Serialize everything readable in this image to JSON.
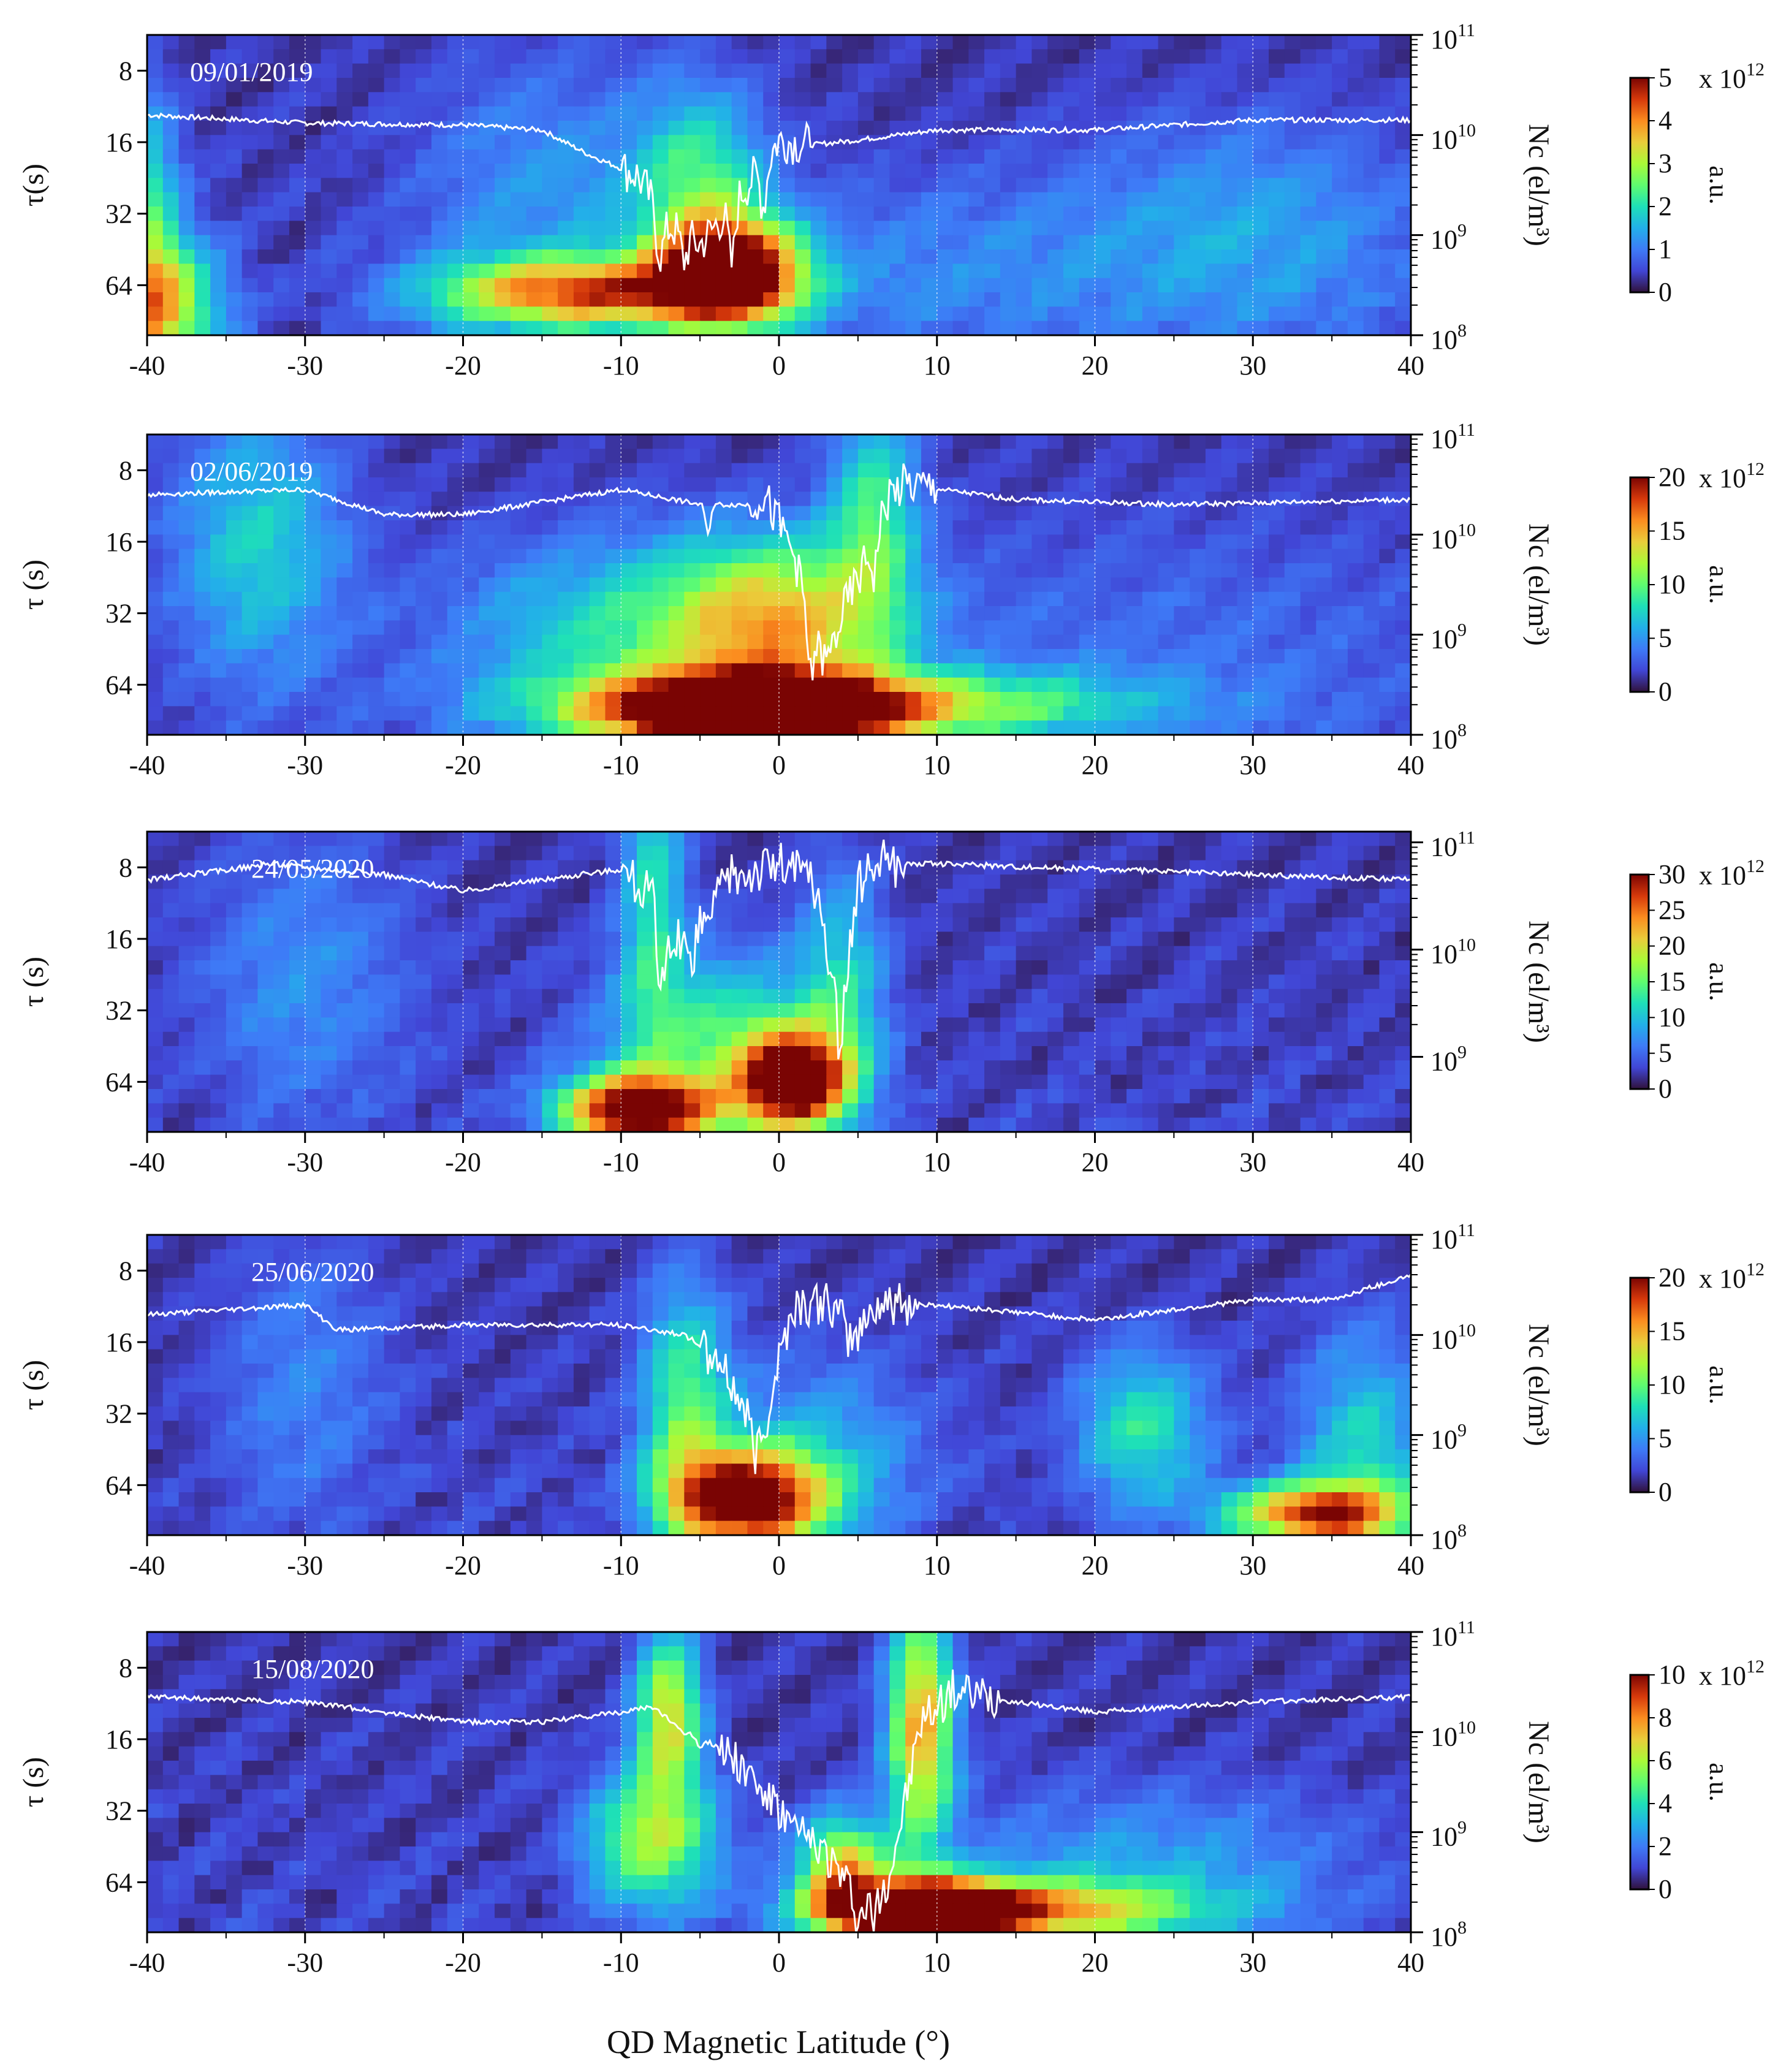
{
  "chart_data": [
    {
      "type": "heatmap",
      "date": "09/01/2019",
      "xlabel": "QD Magnetic Latitude (°)",
      "ylabel": "τ(s)",
      "y2label": "Nc (el/m³)",
      "colorbar_label": "a.u.",
      "colorbar_scale": "x 10^12",
      "colorbar_ticks": [
        "0",
        "1",
        "2",
        "3",
        "4",
        "5"
      ],
      "colorbar_max": 5,
      "x_ticks": [
        "-40",
        "-30",
        "-20",
        "-10",
        "0",
        "10",
        "20",
        "30",
        "40"
      ],
      "xlim": [
        -40,
        40
      ],
      "y_ticks": [
        "8",
        "16",
        "32",
        "64"
      ],
      "y2_ticks": [
        8,
        9,
        10,
        11
      ],
      "y2lim": [
        8,
        11
      ],
      "blobs": [
        {
          "x": -3,
          "y": 5.8,
          "sx": 3,
          "sy": 0.5,
          "v": 5.0
        },
        {
          "x": -12,
          "y": 6.1,
          "sx": 7,
          "sy": 0.35,
          "v": 3.6
        },
        {
          "x": -40,
          "y": 6.3,
          "sx": 3,
          "sy": 0.7,
          "v": 3.6
        },
        {
          "x": -40,
          "y": 4.6,
          "sx": 1.5,
          "sy": 1,
          "v": 1.6
        },
        {
          "x": -5,
          "y": 4.6,
          "sx": 3,
          "sy": 1,
          "v": 1.8
        },
        {
          "x": -15,
          "y": 4.8,
          "sx": 6,
          "sy": 1.5,
          "v": 0.9
        },
        {
          "x": 30,
          "y": 5.3,
          "sx": 8,
          "sy": 1.2,
          "v": 1.0
        },
        {
          "x": 10,
          "y": 5.8,
          "sx": 10,
          "sy": 1.0,
          "v": 0.7
        }
      ],
      "nc_baseline": [
        [
          -40,
          10.2
        ],
        [
          -30,
          10.12
        ],
        [
          -20,
          10.1
        ],
        [
          -15,
          10.05
        ],
        [
          -12,
          9.8
        ],
        [
          -9,
          9.6
        ],
        [
          -7,
          9.1
        ],
        [
          -5,
          8.9
        ],
        [
          -3,
          9.3
        ],
        [
          -1,
          9.7
        ],
        [
          0,
          9.95
        ],
        [
          2,
          9.9
        ],
        [
          5,
          9.95
        ],
        [
          10,
          10.05
        ],
        [
          20,
          10.05
        ],
        [
          30,
          10.15
        ],
        [
          40,
          10.15
        ]
      ],
      "nc_dips": [
        [
          -7.5,
          8.8,
          0.5
        ],
        [
          -6,
          8.75,
          0.4
        ],
        [
          -3,
          8.7,
          0.4
        ],
        [
          -1,
          9.3,
          0.4
        ]
      ]
    },
    {
      "type": "heatmap",
      "date": "02/06/2019",
      "xlabel": "QD Magnetic Latitude (°)",
      "ylabel": "τ (s)",
      "y2label": "Nc (el/m³)",
      "colorbar_label": "a.u.",
      "colorbar_scale": "x 10^12",
      "colorbar_ticks": [
        "0",
        "5",
        "10",
        "15",
        "20"
      ],
      "colorbar_max": 20,
      "x_ticks": [
        "-40",
        "-30",
        "-20",
        "-10",
        "0",
        "10",
        "20",
        "30",
        "40"
      ],
      "xlim": [
        -40,
        40
      ],
      "y_ticks": [
        "8",
        "16",
        "32",
        "64"
      ],
      "y2_ticks": [
        8,
        9,
        10,
        11
      ],
      "y2lim": [
        8,
        11
      ],
      "blobs": [
        {
          "x": -2,
          "y": 6.4,
          "sx": 6,
          "sy": 0.35,
          "v": 20
        },
        {
          "x": 4,
          "y": 6.3,
          "sx": 12,
          "sy": 0.35,
          "v": 11
        },
        {
          "x": 0,
          "y": 5.1,
          "sx": 5,
          "sy": 0.8,
          "v": 11
        },
        {
          "x": -10,
          "y": 5.3,
          "sx": 8,
          "sy": 1.0,
          "v": 6
        },
        {
          "x": -33,
          "y": 4.0,
          "sx": 4,
          "sy": 1.4,
          "v": 6
        },
        {
          "x": 6,
          "y": 3.5,
          "sx": 2,
          "sy": 1.2,
          "v": 7
        },
        {
          "x": 25,
          "y": 5.5,
          "sx": 15,
          "sy": 1.5,
          "v": 2
        }
      ],
      "nc_baseline": [
        [
          -40,
          10.4
        ],
        [
          -30,
          10.45
        ],
        [
          -25,
          10.2
        ],
        [
          -20,
          10.2
        ],
        [
          -10,
          10.45
        ],
        [
          -5,
          10.3
        ],
        [
          -2,
          10.3
        ],
        [
          -1,
          10.4
        ],
        [
          1,
          9.8
        ],
        [
          2,
          9.0
        ],
        [
          3,
          8.7
        ],
        [
          4,
          9.2
        ],
        [
          6,
          9.9
        ],
        [
          7,
          10.4
        ],
        [
          8,
          10.5
        ],
        [
          15,
          10.35
        ],
        [
          25,
          10.3
        ],
        [
          40,
          10.35
        ]
      ],
      "nc_dips": [
        [
          2,
          8.55,
          0.3
        ],
        [
          -4.5,
          10.0,
          0.3
        ],
        [
          6,
          9.6,
          0.3
        ]
      ]
    },
    {
      "type": "heatmap",
      "date": "24/05/2020",
      "xlabel": "QD Magnetic Latitude (°)",
      "ylabel": "τ (s)",
      "y2label": "Nc (el/m³)",
      "colorbar_label": "a.u.",
      "colorbar_scale": "x 10^12",
      "colorbar_ticks": [
        "0",
        "5",
        "10",
        "15",
        "20",
        "25",
        "30"
      ],
      "colorbar_max": 30,
      "x_ticks": [
        "-40",
        "-30",
        "-20",
        "-10",
        "0",
        "10",
        "20",
        "30",
        "40"
      ],
      "xlim": [
        -40,
        40
      ],
      "y_ticks": [
        "8",
        "16",
        "32",
        "64"
      ],
      "y2_ticks": [
        9,
        10,
        11
      ],
      "y2lim": [
        8.3,
        11.1
      ],
      "blobs": [
        {
          "x": -9,
          "y": 6.4,
          "sx": 3.5,
          "sy": 0.35,
          "v": 30
        },
        {
          "x": 1,
          "y": 6.0,
          "sx": 2.5,
          "sy": 0.5,
          "v": 30
        },
        {
          "x": -4,
          "y": 5.4,
          "sx": 5,
          "sy": 0.9,
          "v": 11
        },
        {
          "x": -8,
          "y": 3.2,
          "sx": 1.5,
          "sy": 1.5,
          "v": 10
        },
        {
          "x": -30,
          "y": 4.5,
          "sx": 5,
          "sy": 1.5,
          "v": 5
        },
        {
          "x": 4,
          "y": 4.5,
          "sx": 2,
          "sy": 1.2,
          "v": 8
        }
      ],
      "nc_baseline": [
        [
          -40,
          10.65
        ],
        [
          -32,
          10.8
        ],
        [
          -25,
          10.7
        ],
        [
          -20,
          10.55
        ],
        [
          -10,
          10.75
        ],
        [
          -8,
          10.5
        ],
        [
          -7,
          10.0
        ],
        [
          -5,
          10.2
        ],
        [
          -3,
          10.7
        ],
        [
          0,
          10.8
        ],
        [
          2,
          10.7
        ],
        [
          3,
          10.0
        ],
        [
          4,
          9.4
        ],
        [
          5,
          10.6
        ],
        [
          6,
          10.8
        ],
        [
          10,
          10.8
        ],
        [
          20,
          10.75
        ],
        [
          30,
          10.7
        ],
        [
          40,
          10.65
        ]
      ],
      "nc_dips": [
        [
          -7.5,
          9.5,
          0.4
        ],
        [
          -5.5,
          9.7,
          0.3
        ],
        [
          3.8,
          8.95,
          0.25
        ]
      ]
    },
    {
      "type": "heatmap",
      "date": "25/06/2020",
      "xlabel": "QD Magnetic Latitude (°)",
      "ylabel": "τ (s)",
      "y2label": "Nc (el/m³)",
      "colorbar_label": "a.u.",
      "colorbar_scale": "x 10^12",
      "colorbar_ticks": [
        "0",
        "5",
        "10",
        "15",
        "20"
      ],
      "colorbar_max": 20,
      "x_ticks": [
        "-40",
        "-30",
        "-20",
        "-10",
        "0",
        "10",
        "20",
        "30",
        "40"
      ],
      "xlim": [
        -40,
        40
      ],
      "y_ticks": [
        "8",
        "16",
        "32",
        "64"
      ],
      "y2_ticks": [
        8,
        9,
        10,
        11
      ],
      "y2lim": [
        8,
        11
      ],
      "blobs": [
        {
          "x": -2,
          "y": 6.2,
          "sx": 3.5,
          "sy": 0.5,
          "v": 20
        },
        {
          "x": 34,
          "y": 6.4,
          "sx": 4,
          "sy": 0.3,
          "v": 16
        },
        {
          "x": -6,
          "y": 4.8,
          "sx": 2,
          "sy": 1.2,
          "v": 8
        },
        {
          "x": 23,
          "y": 5.2,
          "sx": 3,
          "sy": 0.8,
          "v": 7
        },
        {
          "x": 37,
          "y": 5.5,
          "sx": 3,
          "sy": 1.2,
          "v": 6
        },
        {
          "x": -30,
          "y": 4.5,
          "sx": 4,
          "sy": 1.5,
          "v": 3
        },
        {
          "x": 3,
          "y": 5.5,
          "sx": 5,
          "sy": 1.0,
          "v": 4
        }
      ],
      "nc_baseline": [
        [
          -40,
          10.2
        ],
        [
          -30,
          10.3
        ],
        [
          -28,
          10.05
        ],
        [
          -20,
          10.1
        ],
        [
          -10,
          10.1
        ],
        [
          -6,
          10.0
        ],
        [
          -4,
          9.8
        ],
        [
          -2,
          9.2
        ],
        [
          -1,
          9.0
        ],
        [
          0,
          9.8
        ],
        [
          1,
          10.3
        ],
        [
          3,
          10.3
        ],
        [
          5,
          10.0
        ],
        [
          6,
          10.3
        ],
        [
          10,
          10.3
        ],
        [
          20,
          10.15
        ],
        [
          30,
          10.35
        ],
        [
          35,
          10.35
        ],
        [
          40,
          10.6
        ]
      ],
      "nc_dips": [
        [
          -1.5,
          8.8,
          0.4
        ],
        [
          -4.5,
          9.7,
          0.3
        ],
        [
          4.5,
          9.95,
          0.3
        ]
      ]
    },
    {
      "type": "heatmap",
      "date": "15/08/2020",
      "xlabel": "QD Magnetic Latitude (°)",
      "ylabel": "τ (s)",
      "y2label": "Nc (el/m³)",
      "colorbar_label": "a.u.",
      "colorbar_scale": "x 10^12",
      "colorbar_ticks": [
        "0",
        "2",
        "4",
        "6",
        "8",
        "10"
      ],
      "colorbar_max": 10,
      "x_ticks": [
        "-40",
        "-30",
        "-20",
        "-10",
        "0",
        "10",
        "20",
        "30",
        "40"
      ],
      "xlim": [
        -40,
        40
      ],
      "y_ticks": [
        "8",
        "16",
        "32",
        "64"
      ],
      "y2_ticks": [
        8,
        9,
        10,
        11
      ],
      "y2lim": [
        8,
        11
      ],
      "blobs": [
        {
          "x": 9,
          "y": 6.4,
          "sx": 4,
          "sy": 0.3,
          "v": 10
        },
        {
          "x": 15,
          "y": 6.4,
          "sx": 8,
          "sy": 0.3,
          "v": 6
        },
        {
          "x": 4,
          "y": 5.8,
          "sx": 2,
          "sy": 0.5,
          "v": 6
        },
        {
          "x": -8,
          "y": 5.4,
          "sx": 3,
          "sy": 0.7,
          "v": 5
        },
        {
          "x": 9,
          "y": 3.8,
          "sx": 1.5,
          "sy": 1.2,
          "v": 7
        },
        {
          "x": -7,
          "y": 3.6,
          "sx": 1.5,
          "sy": 0.8,
          "v": 6
        },
        {
          "x": 23,
          "y": 5.8,
          "sx": 10,
          "sy": 0.8,
          "v": 2
        }
      ],
      "nc_baseline": [
        [
          -40,
          10.35
        ],
        [
          -30,
          10.3
        ],
        [
          -20,
          10.1
        ],
        [
          -15,
          10.1
        ],
        [
          -10,
          10.2
        ],
        [
          -8,
          10.25
        ],
        [
          -6,
          10.0
        ],
        [
          -3,
          9.8
        ],
        [
          -1,
          9.4
        ],
        [
          1,
          9.0
        ],
        [
          3,
          8.8
        ],
        [
          5,
          8.3
        ],
        [
          6,
          8.2
        ],
        [
          7,
          8.6
        ],
        [
          8,
          9.3
        ],
        [
          9,
          10.1
        ],
        [
          11,
          10.4
        ],
        [
          15,
          10.3
        ],
        [
          20,
          10.2
        ],
        [
          30,
          10.3
        ],
        [
          40,
          10.35
        ]
      ],
      "nc_dips": [
        [
          5,
          8.05,
          0.3
        ],
        [
          6,
          8.05,
          0.2
        ],
        [
          -5,
          9.85,
          0.3
        ]
      ]
    }
  ]
}
